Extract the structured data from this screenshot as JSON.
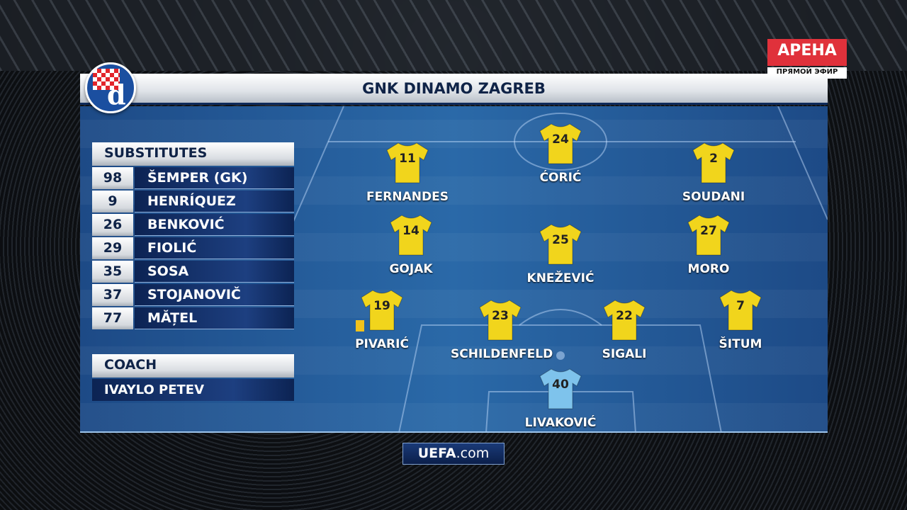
{
  "broadcaster": {
    "channel": "АРЕНА",
    "live_label": "ПРЯМОЙ ЭФИР"
  },
  "team": {
    "name": "GNK DINAMO ZAGREB",
    "crest_letter": "d"
  },
  "substitutes": {
    "title": "SUBSTITUTES",
    "players": [
      {
        "number": "98",
        "name": "ŠEMPER (GK)"
      },
      {
        "number": "9",
        "name": "HENRÍQUEZ"
      },
      {
        "number": "26",
        "name": "BENKOVIĆ"
      },
      {
        "number": "29",
        "name": "FIOLIĆ"
      },
      {
        "number": "35",
        "name": "SOSA"
      },
      {
        "number": "37",
        "name": "STOJANOVIČ"
      },
      {
        "number": "77",
        "name": "MĂȚEL"
      }
    ]
  },
  "coach": {
    "title": "COACH",
    "name": "IVAYLO PETEV"
  },
  "lineup": [
    {
      "number": "11",
      "name": "FERNANDES",
      "kit": "#f1d51c"
    },
    {
      "number": "24",
      "name": "ĆORIĆ",
      "kit": "#f1d51c"
    },
    {
      "number": "2",
      "name": "SOUDANI",
      "kit": "#f1d51c"
    },
    {
      "number": "14",
      "name": "GOJAK",
      "kit": "#f1d51c"
    },
    {
      "number": "25",
      "name": "KNEŽEVIĆ",
      "kit": "#f1d51c"
    },
    {
      "number": "27",
      "name": "MORO",
      "kit": "#f1d51c"
    },
    {
      "number": "19",
      "name": "PIVARIĆ",
      "kit": "#f1d51c",
      "yellow_card": true
    },
    {
      "number": "23",
      "name": "SCHILDENFELD",
      "kit": "#f1d51c"
    },
    {
      "number": "22",
      "name": "SIGALI",
      "kit": "#f1d51c"
    },
    {
      "number": "7",
      "name": "ŠITUM",
      "kit": "#f1d51c"
    },
    {
      "number": "40",
      "name": "LIVAKOVIĆ",
      "kit": "#7ec3ec"
    }
  ],
  "footer": {
    "logo_bold": "UEFA",
    "logo_rest": ".com"
  }
}
